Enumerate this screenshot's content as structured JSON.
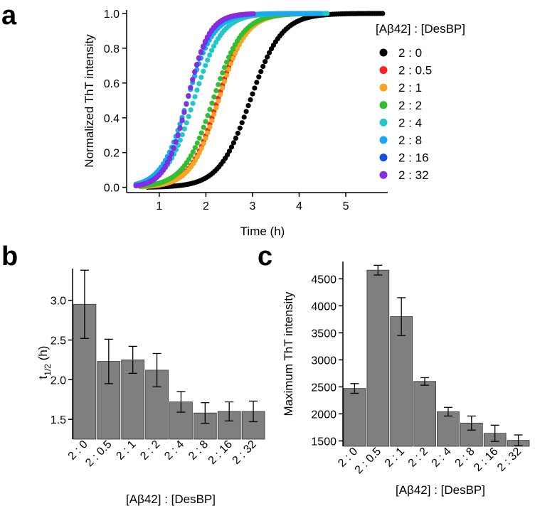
{
  "panels": {
    "a": "a",
    "b": "b",
    "c": "c"
  },
  "chart_data": [
    {
      "id": "a",
      "type": "scatter",
      "title": "",
      "xlabel": "Time (h)",
      "ylabel": "Normalized ThT intensity",
      "xlim": [
        0.3,
        5.9
      ],
      "ylim": [
        -0.03,
        1.02
      ],
      "xticks": [
        1,
        2,
        3,
        4,
        5
      ],
      "yticks": [
        0.0,
        0.2,
        0.4,
        0.6,
        0.8,
        1.0
      ],
      "xtick_labels": [
        "1",
        "2",
        "3",
        "4",
        "5"
      ],
      "ytick_labels": [
        "0.0",
        "0.2",
        "0.4",
        "0.6",
        "0.8",
        "1.0"
      ],
      "legend_title": "[Aβ42] : [DesBP]",
      "legend_position": "right",
      "series": [
        {
          "name": "2 : 0",
          "color": "#000000",
          "t_half": 2.95,
          "k": 3.0,
          "start": 0.75,
          "end": 5.8,
          "step": 0.045
        },
        {
          "name": "2 : 0.5",
          "color": "#ff2020",
          "t_half": 2.25,
          "k": 3.4,
          "start": 0.6,
          "end": 4.4,
          "step": 0.045
        },
        {
          "name": "2 : 1",
          "color": "#f5a623",
          "t_half": 2.27,
          "k": 3.4,
          "start": 0.6,
          "end": 4.45,
          "step": 0.045
        },
        {
          "name": "2 : 2",
          "color": "#2fbf2f",
          "t_half": 2.15,
          "k": 3.2,
          "start": 0.6,
          "end": 4.3,
          "step": 0.045
        },
        {
          "name": "2 : 4",
          "color": "#20c8c8",
          "t_half": 1.74,
          "k": 3.4,
          "start": 0.55,
          "end": 4.6,
          "step": 0.045
        },
        {
          "name": "2 : 8",
          "color": "#1aa8f0",
          "t_half": 1.6,
          "k": 3.6,
          "start": 0.5,
          "end": 4.5,
          "step": 0.045
        },
        {
          "name": "2 : 16",
          "color": "#1450e0",
          "t_half": 1.6,
          "k": 4.2,
          "start": 0.5,
          "end": 3.0,
          "step": 0.045
        },
        {
          "name": "2 : 32",
          "color": "#8a2be2",
          "t_half": 1.6,
          "k": 4.3,
          "start": 0.5,
          "end": 3.05,
          "step": 0.045
        }
      ]
    },
    {
      "id": "b",
      "type": "bar",
      "title": "",
      "xlabel": "[Aβ42] : [DesBP]",
      "ylabel": "t",
      "ylabel_sub": "1/2",
      "ylabel_unit": " (h)",
      "ylim": [
        1.25,
        3.4
      ],
      "yticks": [
        1.5,
        2.0,
        2.5,
        3.0
      ],
      "ytick_labels": [
        "1.5",
        "2.0",
        "2.5",
        "3.0"
      ],
      "categories": [
        "2 : 0",
        "2 : 0.5",
        "2 : 1",
        "2 : 2",
        "2 : 4",
        "2 : 8",
        "2 : 16",
        "2 : 32"
      ],
      "values": [
        2.95,
        2.23,
        2.25,
        2.12,
        1.72,
        1.58,
        1.6,
        1.6
      ],
      "errors": [
        0.43,
        0.28,
        0.17,
        0.21,
        0.13,
        0.13,
        0.12,
        0.13
      ],
      "bar_color": "#7f7f7f"
    },
    {
      "id": "c",
      "type": "bar",
      "title": "",
      "xlabel": "[Aβ42] : [DesBP]",
      "ylabel": "Maximum ThT intensity",
      "ylim": [
        1400,
        4820
      ],
      "yticks": [
        1500,
        2000,
        2500,
        3000,
        3500,
        4000,
        4500
      ],
      "ytick_labels": [
        "1500",
        "2000",
        "2500",
        "3000",
        "3500",
        "4000",
        "4500"
      ],
      "categories": [
        "2 : 0",
        "2 : 0.5",
        "2 : 1",
        "2 : 2",
        "2 : 4",
        "2 : 8",
        "2 : 16",
        "2 : 32"
      ],
      "values": [
        2470,
        4660,
        3800,
        2600,
        2040,
        1830,
        1640,
        1510
      ],
      "errors": [
        90,
        90,
        350,
        70,
        80,
        130,
        150,
        100
      ],
      "bar_color": "#7f7f7f"
    }
  ]
}
